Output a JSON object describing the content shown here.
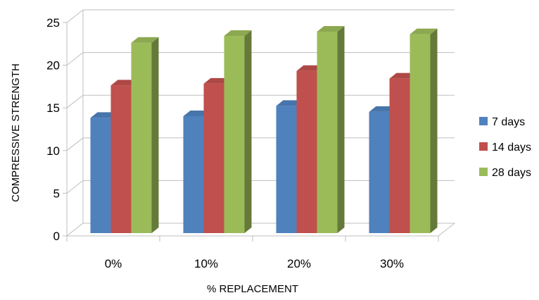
{
  "chart_data": {
    "type": "bar",
    "title": "",
    "xlabel": "% REPLACEMENT",
    "ylabel": "COMPRESSIVE STRENGTH",
    "ylim": [
      0,
      25
    ],
    "yticks": [
      0,
      5,
      10,
      15,
      20,
      25
    ],
    "categories": [
      "0%",
      "10%",
      "20%",
      "30%"
    ],
    "series": [
      {
        "name": "7 days",
        "color": "#4F81BD",
        "values": [
          13.5,
          13.7,
          14.9,
          14.2
        ]
      },
      {
        "name": "14 days",
        "color": "#C0504D",
        "values": [
          17.3,
          17.5,
          19.0,
          18.1
        ]
      },
      {
        "name": "28 days",
        "color": "#9BBB59",
        "values": [
          22.3,
          23.1,
          23.6,
          23.3
        ]
      }
    ],
    "grid": true,
    "legend_position": "right",
    "style": "3d-clustered-column"
  }
}
